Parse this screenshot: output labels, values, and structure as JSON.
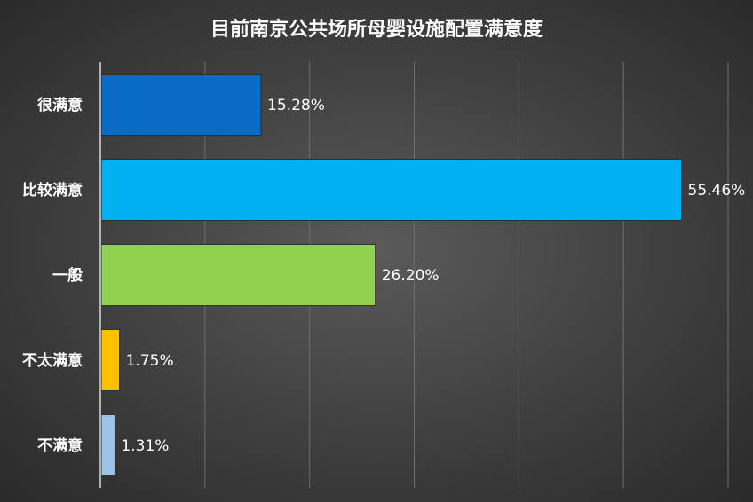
{
  "chart_data": {
    "type": "bar",
    "orientation": "horizontal",
    "title": "目前南京公共场所母婴设施配置满意度",
    "categories": [
      "很满意",
      "比较满意",
      "一般",
      "不太满意",
      "不满意"
    ],
    "values": [
      15.28,
      55.46,
      26.2,
      1.75,
      1.31
    ],
    "value_labels": [
      "15.28%",
      "55.46%",
      "26.20%",
      "1.75%",
      "1.31%"
    ],
    "colors": [
      "#0a6bc4",
      "#00b0f0",
      "#92d050",
      "#ffc000",
      "#9dc3e6"
    ],
    "xlim": [
      0,
      60
    ],
    "grid": true,
    "legend": "none"
  }
}
